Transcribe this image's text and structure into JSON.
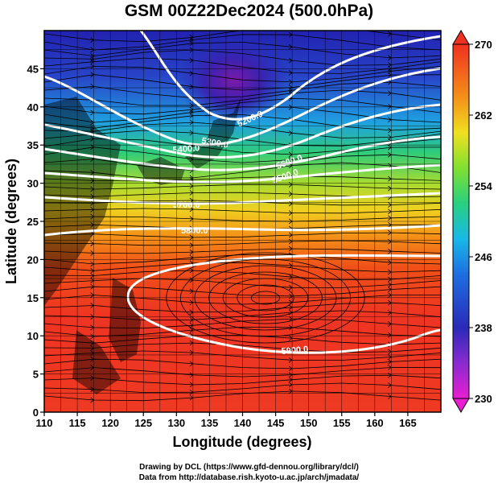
{
  "title": "GSM 00Z22Dec2024 (500.0hPa)",
  "x_axis": {
    "label": "Longitude (degrees)",
    "range": [
      110,
      170
    ],
    "ticks": [
      "110",
      "115",
      "120",
      "125",
      "130",
      "135",
      "140",
      "145",
      "150",
      "155",
      "160",
      "165"
    ]
  },
  "y_axis": {
    "label": "Latitude  (degrees)",
    "range": [
      0,
      50
    ],
    "ticks": [
      "0",
      "5",
      "10",
      "15",
      "20",
      "25",
      "30",
      "35",
      "40",
      "45"
    ]
  },
  "colorbar": {
    "range": [
      230,
      270
    ],
    "labels": [
      "230",
      "238",
      "246",
      "254",
      "262",
      "270"
    ]
  },
  "contours": [
    {
      "label": "5200.0"
    },
    {
      "label": "5300.0"
    },
    {
      "label": "5400.0"
    },
    {
      "label": "5500.0"
    },
    {
      "label": "5600.0"
    },
    {
      "label": "5700.0"
    },
    {
      "label": "5800.0"
    },
    {
      "label": "5900.0"
    }
  ],
  "credits": {
    "drawing": "Drawing by DCL (https://www.gfd-dennou.org/library/dcl/)",
    "data": "Data from http://database.rish.kyoto-u.ac.jp/arch/jmadata/"
  },
  "colors": {
    "low": "#e020d0",
    "cold": "#2a2ab8",
    "mid_cold": "#1ea0e6",
    "mid": "#28d060",
    "mid_warm": "#e8e020",
    "warm": "#f08010",
    "high": "#ee3020",
    "contour": "#ffffff",
    "stream": "#000000"
  }
}
